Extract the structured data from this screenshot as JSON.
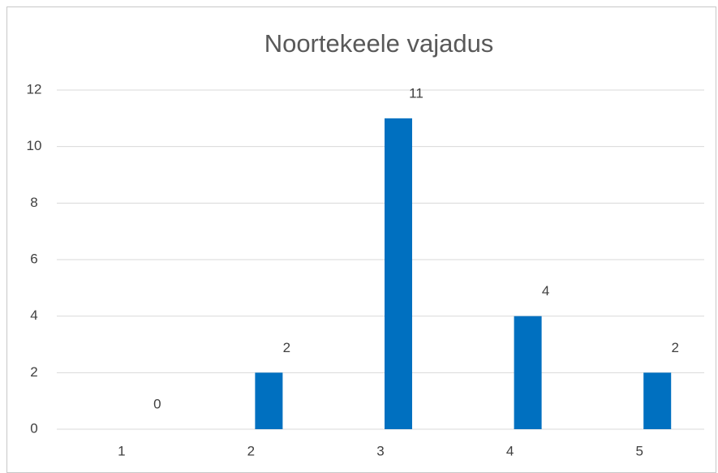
{
  "chart_data": {
    "type": "bar",
    "title": "Noortekeele vajadus",
    "categories": [
      "1",
      "2",
      "3",
      "4",
      "5"
    ],
    "values": [
      0,
      2,
      11,
      4,
      2
    ],
    "color": "#0070c0",
    "ylim": [
      0,
      12
    ],
    "yticks": [
      0,
      2,
      4,
      6,
      8,
      10,
      12
    ],
    "grid": true
  }
}
